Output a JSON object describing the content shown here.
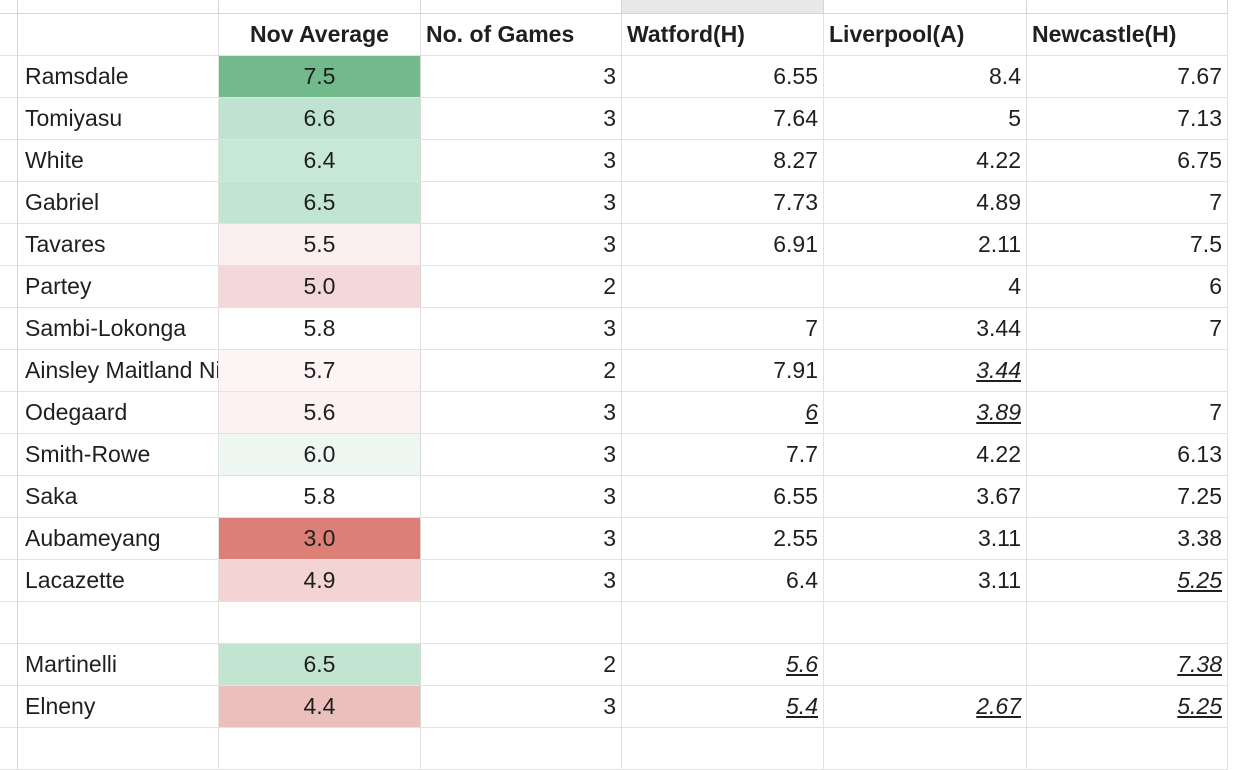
{
  "sheet": {
    "headers": [
      "",
      "Nov Average",
      "No. of Games",
      "Watford(H)",
      "Liverpool(A)",
      "Newcastle(H)"
    ],
    "rows": [
      {
        "name": "Ramsdale",
        "avg": "7.5",
        "avg_color": "#72b98b",
        "games": "3",
        "watford": "6.55",
        "liverpool": "8.4",
        "newcastle": "7.67",
        "watford_u": false,
        "liverpool_u": false,
        "newcastle_u": false
      },
      {
        "name": "Tomiyasu",
        "avg": "6.6",
        "avg_color": "#bfe3d0",
        "games": "3",
        "watford": "7.64",
        "liverpool": "5",
        "newcastle": "7.13",
        "watford_u": false,
        "liverpool_u": false,
        "newcastle_u": false
      },
      {
        "name": "White",
        "avg": "6.4",
        "avg_color": "#c8e8d6",
        "games": "3",
        "watford": "8.27",
        "liverpool": "4.22",
        "newcastle": "6.75",
        "watford_u": false,
        "liverpool_u": false,
        "newcastle_u": false
      },
      {
        "name": "Gabriel",
        "avg": "6.5",
        "avg_color": "#c2e5d2",
        "games": "3",
        "watford": "7.73",
        "liverpool": "4.89",
        "newcastle": "7",
        "watford_u": false,
        "liverpool_u": false,
        "newcastle_u": false
      },
      {
        "name": "Tavares",
        "avg": "5.5",
        "avg_color": "#fbeff0",
        "games": "3",
        "watford": "6.91",
        "liverpool": "2.11",
        "newcastle": "7.5",
        "watford_u": false,
        "liverpool_u": false,
        "newcastle_u": false
      },
      {
        "name": "Partey",
        "avg": "5.0",
        "avg_color": "#f4d7d8",
        "games": "2",
        "watford": "",
        "liverpool": "4",
        "newcastle": "6",
        "watford_u": false,
        "liverpool_u": false,
        "newcastle_u": false
      },
      {
        "name": "Sambi-Lokonga",
        "avg": "5.8",
        "avg_color": "#ffffff",
        "games": "3",
        "watford": "7",
        "liverpool": "3.44",
        "newcastle": "7",
        "watford_u": false,
        "liverpool_u": false,
        "newcastle_u": false
      },
      {
        "name": "Ainsley Maitland Niles",
        "avg": "5.7",
        "avg_color": "#fdf5f5",
        "games": "2",
        "watford": "7.91",
        "liverpool": "3.44",
        "newcastle": "",
        "watford_u": false,
        "liverpool_u": true,
        "newcastle_u": false
      },
      {
        "name": "Odegaard",
        "avg": "5.6",
        "avg_color": "#fcf2f2",
        "games": "3",
        "watford": "6",
        "liverpool": "3.89",
        "newcastle": "7",
        "watford_u": true,
        "liverpool_u": true,
        "newcastle_u": false
      },
      {
        "name": "Smith-Rowe",
        "avg": "6.0",
        "avg_color": "#eef7f2",
        "games": "3",
        "watford": "7.7",
        "liverpool": "4.22",
        "newcastle": "6.13",
        "watford_u": false,
        "liverpool_u": false,
        "newcastle_u": false
      },
      {
        "name": "Saka",
        "avg": "5.8",
        "avg_color": "#ffffff",
        "games": "3",
        "watford": "6.55",
        "liverpool": "3.67",
        "newcastle": "7.25",
        "watford_u": false,
        "liverpool_u": false,
        "newcastle_u": false
      },
      {
        "name": "Aubameyang",
        "avg": "3.0",
        "avg_color": "#db7f77",
        "games": "3",
        "watford": "2.55",
        "liverpool": "3.11",
        "newcastle": "3.38",
        "watford_u": false,
        "liverpool_u": false,
        "newcastle_u": false
      },
      {
        "name": "Lacazette",
        "avg": "4.9",
        "avg_color": "#f3d4d3",
        "games": "3",
        "watford": "6.4",
        "liverpool": "3.11",
        "newcastle": "5.25",
        "watford_u": false,
        "liverpool_u": false,
        "newcastle_u": true
      },
      {
        "name": "",
        "avg": "",
        "avg_color": "#ffffff",
        "games": "",
        "watford": "",
        "liverpool": "",
        "newcastle": "",
        "watford_u": false,
        "liverpool_u": false,
        "newcastle_u": false
      },
      {
        "name": "Martinelli",
        "avg": "6.5",
        "avg_color": "#c2e5d2",
        "games": "2",
        "watford": "5.6",
        "liverpool": "",
        "newcastle": "7.38",
        "watford_u": true,
        "liverpool_u": false,
        "newcastle_u": true
      },
      {
        "name": "Elneny",
        "avg": "4.4",
        "avg_color": "#ebbfbc",
        "games": "3",
        "watford": "5.4",
        "liverpool": "2.67",
        "newcastle": "5.25",
        "watford_u": true,
        "liverpool_u": true,
        "newcastle_u": true
      },
      {
        "name": "",
        "avg": "",
        "avg_color": "#ffffff",
        "games": "",
        "watford": "",
        "liverpool": "",
        "newcastle": "",
        "watford_u": false,
        "liverpool_u": false,
        "newcastle_u": false
      }
    ]
  }
}
